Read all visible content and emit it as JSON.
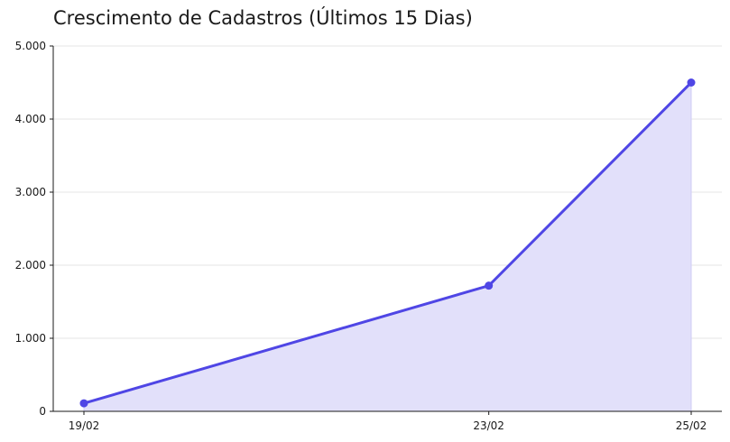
{
  "chart_data": {
    "type": "area",
    "title": "Crescimento de Cadastros (Últimos 15 Dias)",
    "xlabel": "",
    "ylabel": "",
    "x": [
      "19/02",
      "23/02",
      "25/02"
    ],
    "series": [
      {
        "values": [
          110,
          1720,
          4500
        ],
        "line_color": "#4f46e5",
        "fill_color": "#e2e0fa"
      }
    ],
    "ylim": [
      0,
      5000
    ],
    "yticks": [
      0,
      1000,
      2000,
      3000,
      4000,
      5000
    ],
    "ytick_labels": [
      "0",
      "1.000",
      "2.000",
      "3.000",
      "4.000",
      "5.000"
    ],
    "grid": "horizontal",
    "legend": "none"
  }
}
